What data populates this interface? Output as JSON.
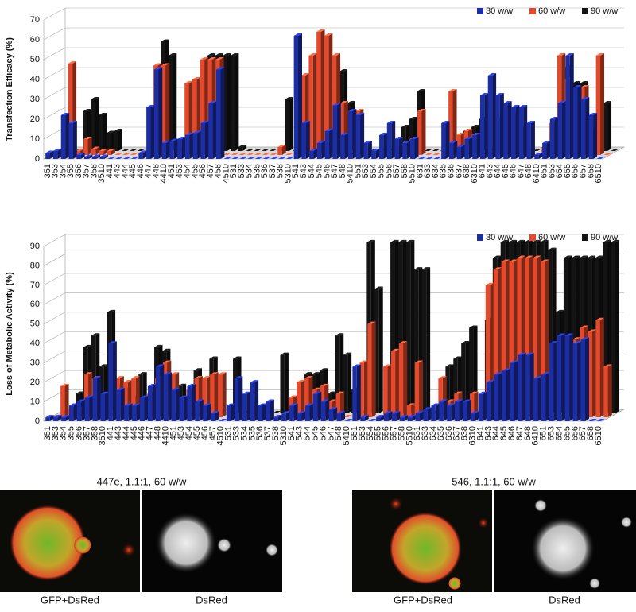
{
  "chart_data": [
    {
      "type": "bar3d",
      "y_label": "Transfection Efficacy (%)",
      "legend": "top-right",
      "grid": true,
      "ylim": [
        0,
        70
      ],
      "yticks": [
        0,
        10,
        20,
        30,
        40,
        50,
        60,
        70
      ],
      "categories": [
        "351",
        "353",
        "354",
        "355",
        "356",
        "357",
        "358",
        "3510",
        "441",
        "443",
        "444",
        "445",
        "446",
        "447",
        "448",
        "4410",
        "451",
        "453",
        "454",
        "455",
        "456",
        "457",
        "458",
        "4510",
        "531",
        "533",
        "534",
        "535",
        "536",
        "537",
        "538",
        "5310",
        "541",
        "543",
        "544",
        "545",
        "546",
        "547",
        "548",
        "5410",
        "551",
        "553",
        "554",
        "555",
        "556",
        "557",
        "558",
        "5510",
        "631",
        "633",
        "634",
        "635",
        "636",
        "637",
        "638",
        "6310",
        "641",
        "643",
        "644",
        "645",
        "646",
        "647",
        "648",
        "6410",
        "651",
        "653",
        "654",
        "655",
        "656",
        "657",
        "658",
        "6510"
      ],
      "series": [
        {
          "name": "30 w/w",
          "color": "#1c2ea6",
          "values": [
            3,
            4,
            22,
            18,
            2,
            1,
            1,
            1,
            0,
            0,
            0,
            0,
            3,
            26,
            45,
            8,
            9,
            10,
            12,
            13,
            18,
            28,
            45,
            0,
            0,
            0,
            0,
            0,
            0,
            0,
            0,
            0,
            62,
            18,
            4,
            8,
            14,
            27,
            12,
            24,
            22,
            8,
            4,
            12,
            18,
            10,
            8,
            10,
            0,
            0,
            0,
            18,
            8,
            6,
            10,
            12,
            32,
            42,
            32,
            28,
            26,
            26,
            18,
            2,
            8,
            20,
            28,
            52,
            36,
            30,
            22,
            0
          ]
        },
        {
          "name": "60 w/w",
          "color": "#e5492b",
          "values": [
            0,
            0,
            46,
            2,
            8,
            3,
            2,
            2,
            0,
            0,
            0,
            0,
            0,
            45,
            45,
            0,
            0,
            36,
            38,
            48,
            48,
            48,
            0,
            0,
            0,
            0,
            0,
            0,
            0,
            4,
            0,
            0,
            40,
            50,
            62,
            60,
            50,
            26,
            0,
            22,
            0,
            0,
            0,
            0,
            4,
            6,
            8,
            22,
            0,
            0,
            0,
            32,
            10,
            12,
            10,
            0,
            0,
            18,
            24,
            20,
            14,
            0,
            0,
            4,
            16,
            50,
            38,
            32,
            34,
            12,
            50,
            0
          ]
        },
        {
          "name": "90 w/w",
          "color": "#141414",
          "values": [
            0,
            0,
            0,
            20,
            26,
            18,
            9,
            10,
            0,
            0,
            0,
            0,
            0,
            55,
            48,
            0,
            0,
            0,
            0,
            48,
            48,
            48,
            48,
            2,
            0,
            0,
            0,
            0,
            0,
            26,
            0,
            0,
            0,
            0,
            0,
            0,
            40,
            24,
            0,
            0,
            0,
            0,
            0,
            0,
            12,
            16,
            30,
            0,
            0,
            0,
            0,
            0,
            10,
            12,
            16,
            0,
            0,
            0,
            0,
            0,
            0,
            0,
            0,
            0,
            0,
            42,
            34,
            34,
            0,
            0,
            24,
            0
          ]
        }
      ]
    },
    {
      "type": "bar3d",
      "y_label": "Loss of Metabolic Activity (%)",
      "legend": "top-right",
      "grid": true,
      "ylim": [
        0,
        90
      ],
      "yticks": [
        0,
        10,
        20,
        30,
        40,
        50,
        60,
        70,
        80,
        90
      ],
      "categories": [
        "351",
        "353",
        "354",
        "355",
        "356",
        "357",
        "358",
        "3510",
        "441",
        "443",
        "444",
        "445",
        "446",
        "447",
        "448",
        "4410",
        "451",
        "453",
        "454",
        "455",
        "456",
        "457",
        "4510",
        "531",
        "533",
        "534",
        "535",
        "536",
        "537",
        "538",
        "5310",
        "541",
        "543",
        "544",
        "545",
        "546",
        "547",
        "548",
        "5410",
        "551",
        "553",
        "554",
        "555",
        "556",
        "557",
        "558",
        "5510",
        "631",
        "633",
        "634",
        "635",
        "636",
        "637",
        "638",
        "6310",
        "641",
        "643",
        "644",
        "645",
        "646",
        "647",
        "648",
        "6410",
        "651",
        "653",
        "654",
        "655",
        "656",
        "657",
        "658",
        "6510"
      ],
      "series": [
        {
          "name": "30 w/w",
          "color": "#1c2ea6",
          "values": [
            2,
            2,
            2,
            8,
            10,
            12,
            22,
            14,
            40,
            16,
            8,
            8,
            12,
            18,
            28,
            24,
            16,
            12,
            18,
            10,
            8,
            4,
            0,
            8,
            22,
            14,
            20,
            8,
            10,
            2,
            4,
            8,
            4,
            8,
            14,
            10,
            6,
            4,
            0,
            28,
            2,
            0,
            2,
            4,
            4,
            2,
            2,
            4,
            6,
            8,
            10,
            8,
            10,
            10,
            4,
            14,
            20,
            24,
            26,
            30,
            34,
            34,
            22,
            24,
            40,
            44,
            44,
            40,
            42,
            0,
            0
          ]
        },
        {
          "name": "60 w/w",
          "color": "#e5492b",
          "values": [
            0,
            16,
            4,
            4,
            22,
            20,
            4,
            2,
            20,
            18,
            20,
            0,
            12,
            20,
            28,
            22,
            0,
            14,
            20,
            20,
            22,
            22,
            0,
            0,
            0,
            8,
            0,
            0,
            0,
            0,
            10,
            18,
            20,
            14,
            16,
            8,
            12,
            0,
            0,
            28,
            48,
            0,
            26,
            34,
            38,
            6,
            28,
            0,
            0,
            20,
            8,
            12,
            6,
            12,
            0,
            68,
            76,
            80,
            80,
            82,
            82,
            82,
            80,
            0,
            0,
            40,
            40,
            46,
            44,
            50,
            26
          ]
        },
        {
          "name": "90 w/w",
          "color": "#141414",
          "values": [
            0,
            0,
            10,
            34,
            40,
            24,
            52,
            14,
            12,
            8,
            20,
            0,
            34,
            32,
            12,
            14,
            0,
            22,
            0,
            28,
            0,
            0,
            28,
            0,
            0,
            0,
            0,
            0,
            30,
            0,
            0,
            20,
            20,
            22,
            10,
            40,
            30,
            12,
            0,
            88,
            64,
            0,
            88,
            88,
            88,
            74,
            74,
            0,
            0,
            24,
            28,
            36,
            44,
            0,
            48,
            80,
            88,
            88,
            88,
            88,
            88,
            88,
            84,
            52,
            80,
            80,
            80,
            80,
            80,
            88,
            88
          ]
        }
      ]
    }
  ],
  "figure_panels": [
    {
      "title": "447e, 1.1:1, 60 w/w",
      "captions": [
        "GFP+DsRed",
        "DsRed"
      ]
    },
    {
      "title": "546, 1.1:1, 60 w/w",
      "captions": [
        "GFP+DsRed",
        "DsRed"
      ]
    }
  ]
}
